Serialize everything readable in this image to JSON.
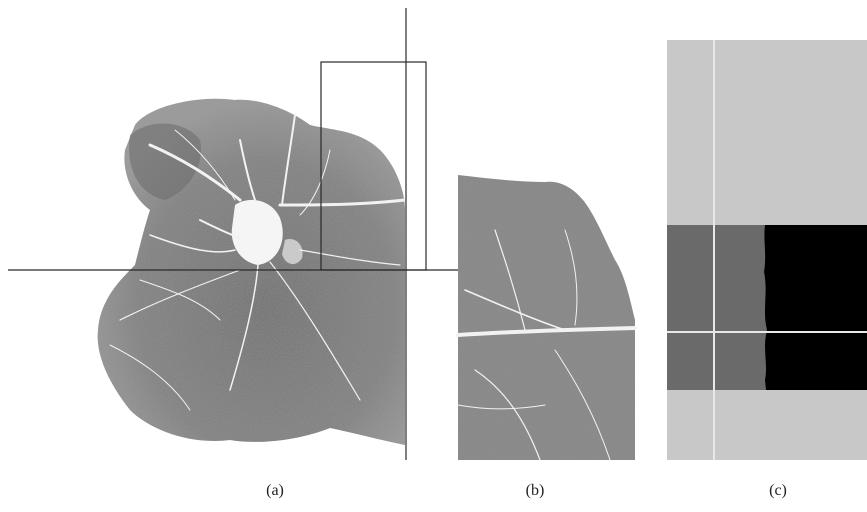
{
  "figure": {
    "panels": [
      {
        "id": "a",
        "caption": "(a)",
        "content": "whole-sample-with-crosshair-and-crop-box"
      },
      {
        "id": "b",
        "caption": "(b)",
        "content": "cropped-enlarged-region"
      },
      {
        "id": "c",
        "caption": "(c)",
        "content": "segmentation-map"
      }
    ],
    "colors": {
      "tissue": "#7e7e7e",
      "tissue_dark": "#5f5f5f",
      "vein": "#f2f2f2",
      "line": "#2a2a2a",
      "seg_light": "#c8c8c8",
      "seg_mid": "#6a6a6a",
      "seg_black": "#000000",
      "seg_line": "#e8e8e8"
    }
  }
}
